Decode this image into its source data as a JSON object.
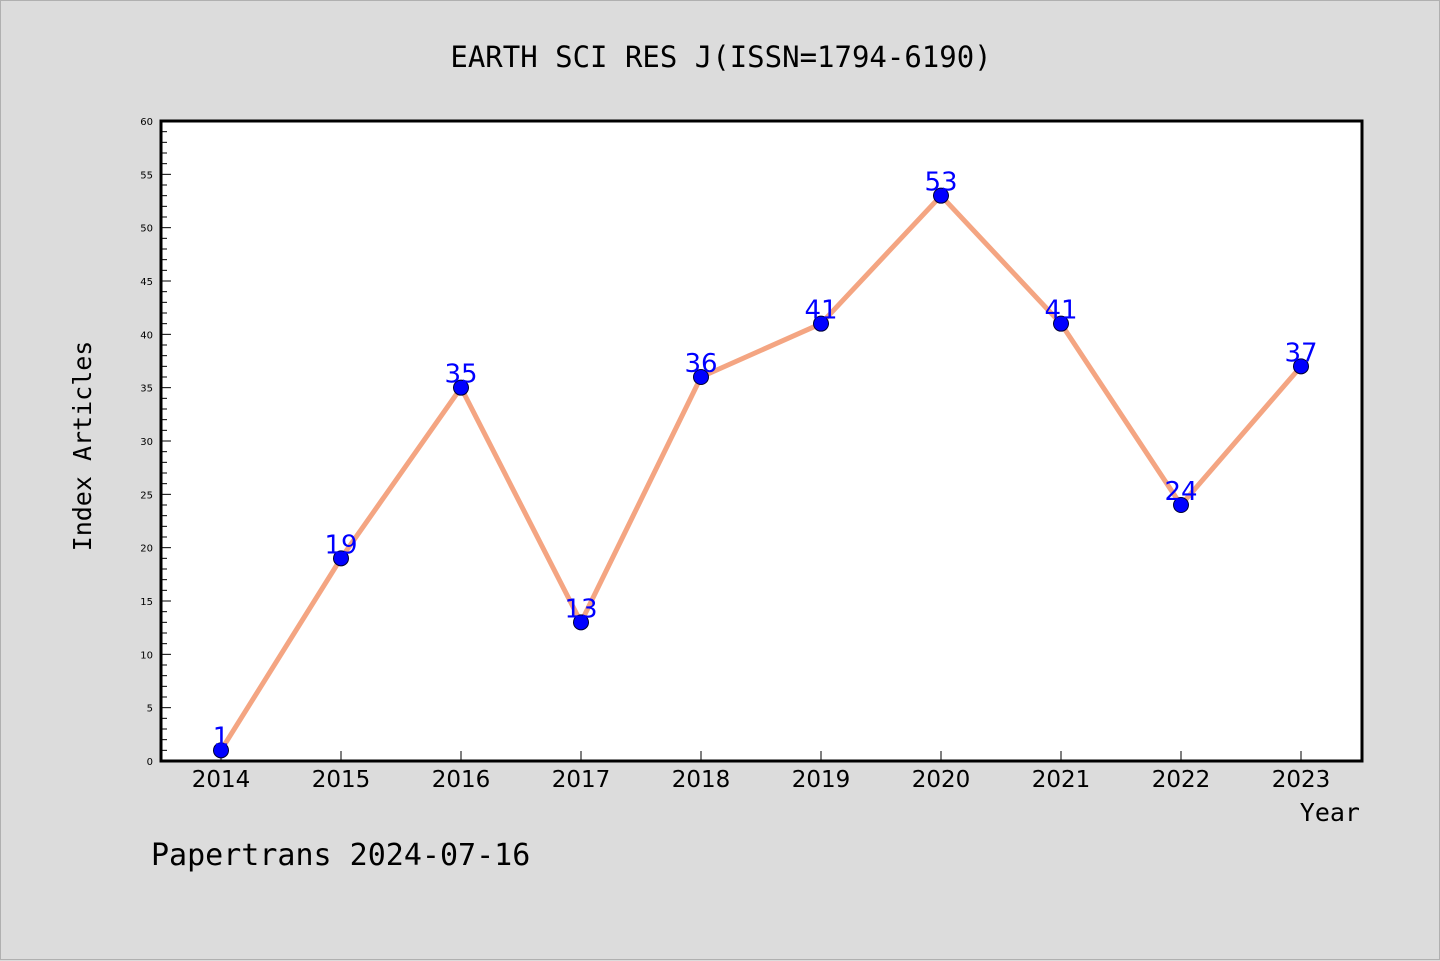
{
  "chart_data": {
    "type": "line",
    "title": "EARTH SCI RES J(ISSN=1794-6190)",
    "xlabel": "Year",
    "ylabel": "Index Articles",
    "categories": [
      "2014",
      "2015",
      "2016",
      "2017",
      "2018",
      "2019",
      "2020",
      "2021",
      "2022",
      "2023"
    ],
    "values": [
      1,
      19,
      35,
      13,
      36,
      41,
      53,
      41,
      24,
      37
    ],
    "data_labels": [
      "1",
      "19",
      "35",
      "13",
      "36",
      "41",
      "53",
      "41",
      "24",
      "37"
    ],
    "ylim": [
      0,
      60
    ],
    "yticks": [
      "0",
      "5",
      "10",
      "15",
      "20",
      "25",
      "30",
      "35",
      "40",
      "45",
      "50",
      "55",
      "60"
    ],
    "grid": false,
    "line_color": "#f4a582",
    "marker_color": "#0000ff",
    "label_color": "#0000ff"
  },
  "footer": "Papertrans 2024-07-16"
}
